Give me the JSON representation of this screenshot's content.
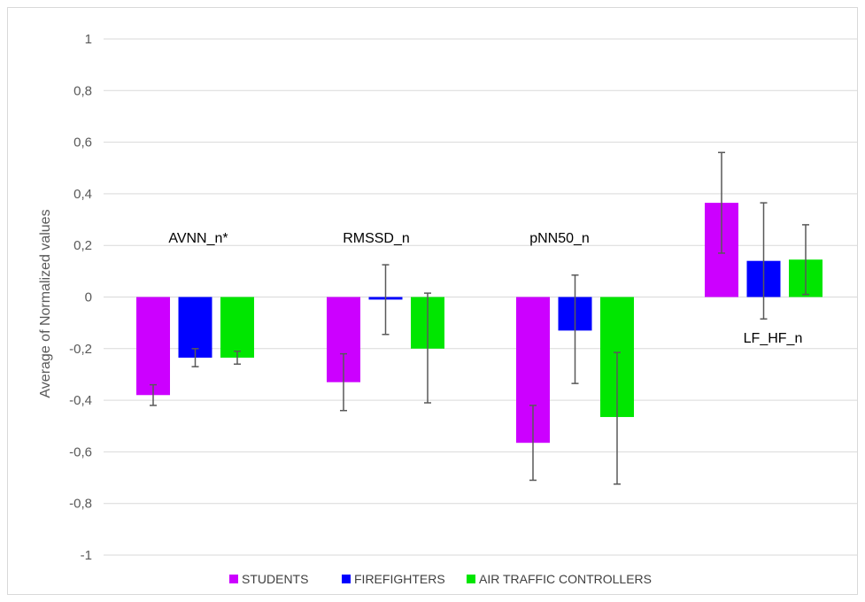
{
  "chart_data": {
    "type": "bar",
    "title": "",
    "xlabel": "",
    "ylabel": "Average of Normalized values",
    "ylim": [
      -1,
      1
    ],
    "yticks": [
      1,
      0.8,
      0.6,
      0.4,
      0.2,
      0,
      -0.2,
      -0.4,
      -0.6,
      -0.8,
      -1
    ],
    "ytick_labels": [
      "1",
      "0,8",
      "0,6",
      "0,4",
      "0,2",
      "0",
      "-0,2",
      "-0,4",
      "-0,6",
      "-0,8",
      "-1"
    ],
    "grid": true,
    "legend_position": "bottom",
    "categories": [
      "AVNN_n*",
      "RMSSD_n",
      "pNN50_n",
      "LF_HF_n"
    ],
    "series": [
      {
        "name": "STUDENTS",
        "color": "#cc00ff",
        "values": [
          -0.38,
          -0.33,
          -0.565,
          0.365
        ],
        "error_low": [
          -0.42,
          -0.44,
          -0.71,
          0.17
        ],
        "error_high": [
          -0.34,
          -0.22,
          -0.42,
          0.56
        ]
      },
      {
        "name": "FIREFIGHTERS",
        "color": "#0000ff",
        "values": [
          -0.235,
          -0.01,
          -0.13,
          0.14
        ],
        "error_low": [
          -0.27,
          -0.145,
          -0.335,
          -0.085
        ],
        "error_high": [
          -0.2,
          0.125,
          0.085,
          0.365
        ]
      },
      {
        "name": "AIR TRAFFIC CONTROLLERS",
        "color": "#00e600",
        "values": [
          -0.235,
          -0.2,
          -0.465,
          0.145
        ],
        "error_low": [
          -0.26,
          -0.41,
          -0.725,
          0.01
        ],
        "error_high": [
          -0.21,
          0.015,
          -0.215,
          0.28
        ]
      }
    ]
  }
}
